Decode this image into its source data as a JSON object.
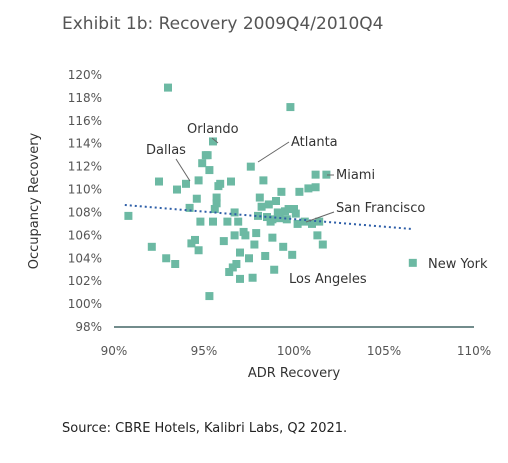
{
  "title": "Exhibit 1b: Recovery 2009Q4/2010Q4",
  "source": "Source: CBRE Hotels, Kalibri Labs, Q2 2021.",
  "colors": {
    "marker": "#6cb9a3",
    "trendline": "#2f5fa8",
    "annotation_line": "#666666",
    "x_axis_line": "#446666"
  },
  "chart_data": {
    "type": "scatter",
    "xlabel": "ADR Recovery",
    "ylabel": "Occupancy Recovery",
    "xlim": [
      0.9,
      1.1
    ],
    "ylim": [
      0.98,
      1.2
    ],
    "x_ticks": [
      0.9,
      0.95,
      1.0,
      1.05,
      1.1
    ],
    "x_tick_labels": [
      "90%",
      "95%",
      "100%",
      "105%",
      "110%"
    ],
    "y_ticks": [
      0.98,
      1.0,
      1.02,
      1.04,
      1.06,
      1.08,
      1.1,
      1.12,
      1.14,
      1.16,
      1.18,
      1.2
    ],
    "y_tick_labels": [
      "98%",
      "100%",
      "102%",
      "104%",
      "106%",
      "108%",
      "110%",
      "112%",
      "114%",
      "116%",
      "118%",
      "120%"
    ],
    "grid": false,
    "trendline": {
      "style": "dotted",
      "x": [
        0.906,
        1.066
      ],
      "y": [
        1.0865,
        1.0655
      ]
    },
    "points": [
      [
        0.908,
        1.077
      ],
      [
        0.921,
        1.05
      ],
      [
        0.925,
        1.107
      ],
      [
        0.929,
        1.04
      ],
      [
        0.93,
        1.189
      ],
      [
        0.934,
        1.035
      ],
      [
        0.935,
        1.1
      ],
      [
        0.94,
        1.105
      ],
      [
        0.942,
        1.084
      ],
      [
        0.943,
        1.053
      ],
      [
        0.945,
        1.056
      ],
      [
        0.946,
        1.092
      ],
      [
        0.947,
        1.108
      ],
      [
        0.947,
        1.047
      ],
      [
        0.948,
        1.072
      ],
      [
        0.949,
        1.123
      ],
      [
        0.951,
        1.13
      ],
      [
        0.952,
        1.13
      ],
      [
        0.953,
        1.007
      ],
      [
        0.953,
        1.117
      ],
      [
        0.955,
        1.142
      ],
      [
        0.955,
        1.072
      ],
      [
        0.956,
        1.083
      ],
      [
        0.957,
        1.093
      ],
      [
        0.957,
        1.088
      ],
      [
        0.958,
        1.103
      ],
      [
        0.959,
        1.105
      ],
      [
        0.961,
        1.055
      ],
      [
        0.963,
        1.072
      ],
      [
        0.964,
        1.028
      ],
      [
        0.965,
        1.107
      ],
      [
        0.966,
        1.032
      ],
      [
        0.967,
        1.08
      ],
      [
        0.967,
        1.06
      ],
      [
        0.968,
        1.035
      ],
      [
        0.969,
        1.072
      ],
      [
        0.97,
        1.045
      ],
      [
        0.97,
        1.022
      ],
      [
        0.972,
        1.063
      ],
      [
        0.973,
        1.06
      ],
      [
        0.975,
        1.04
      ],
      [
        0.976,
        1.12
      ],
      [
        0.977,
        1.023
      ],
      [
        0.978,
        1.052
      ],
      [
        0.979,
        1.062
      ],
      [
        0.98,
        1.077
      ],
      [
        0.981,
        1.093
      ],
      [
        0.982,
        1.085
      ],
      [
        0.983,
        1.108
      ],
      [
        0.984,
        1.042
      ],
      [
        0.985,
        1.076
      ],
      [
        0.986,
        1.087
      ],
      [
        0.987,
        1.072
      ],
      [
        0.988,
        1.074
      ],
      [
        0.988,
        1.058
      ],
      [
        0.989,
        1.03
      ],
      [
        0.99,
        1.09
      ],
      [
        0.991,
        1.08
      ],
      [
        0.992,
        1.075
      ],
      [
        0.993,
        1.098
      ],
      [
        0.994,
        1.05
      ],
      [
        0.995,
        1.081
      ],
      [
        0.996,
        1.074
      ],
      [
        0.997,
        1.083
      ],
      [
        0.998,
        1.172
      ],
      [
        0.999,
        1.043
      ],
      [
        1.0,
        1.083
      ],
      [
        1.001,
        1.079
      ],
      [
        1.002,
        1.07
      ],
      [
        1.003,
        1.098
      ],
      [
        1.006,
        1.072
      ],
      [
        1.008,
        1.101
      ],
      [
        1.01,
        1.07
      ],
      [
        1.012,
        1.102
      ],
      [
        1.012,
        1.113
      ],
      [
        1.013,
        1.06
      ],
      [
        1.014,
        1.072
      ],
      [
        1.016,
        1.052
      ],
      [
        1.018,
        1.113
      ],
      [
        1.066,
        1.036
      ]
    ],
    "annotations": [
      {
        "label": "Orlando",
        "point": [
          0.955,
          1.142
        ]
      },
      {
        "label": "Dallas",
        "point": [
          0.94,
          1.105
        ]
      },
      {
        "label": "Atlanta",
        "point": [
          0.976,
          1.12
        ]
      },
      {
        "label": "Miami",
        "point": [
          1.018,
          1.113
        ]
      },
      {
        "label": "San Francisco",
        "point": [
          1.01,
          1.07
        ]
      },
      {
        "label": "Los Angeles",
        "point": [
          0.999,
          1.043
        ]
      },
      {
        "label": "New York",
        "point": [
          1.066,
          1.036
        ]
      }
    ]
  }
}
